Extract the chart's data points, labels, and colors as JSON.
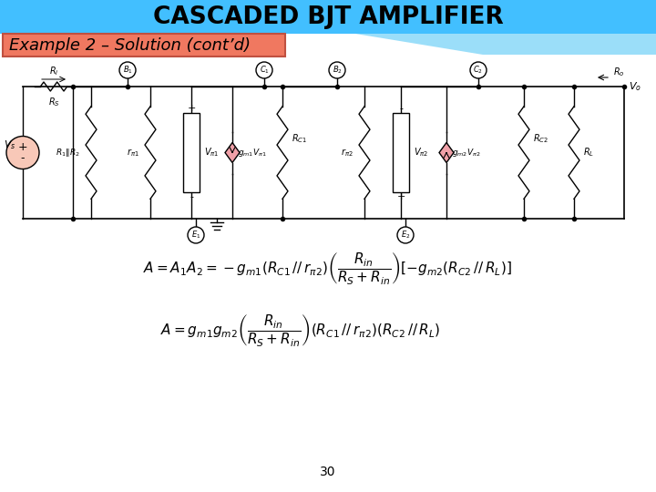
{
  "title": "CASCADED BJT AMPLIFIER",
  "title_bg": "#42BFFF",
  "subtitle": "Example 2 – Solution (cont’d)",
  "subtitle_bg": "#F07860",
  "page_number": "30",
  "bg_color": "#FFFFFF",
  "deco_blue1": "#7AD4F8",
  "deco_blue2": "#A8E0FA",
  "circuit_border": "#999999"
}
